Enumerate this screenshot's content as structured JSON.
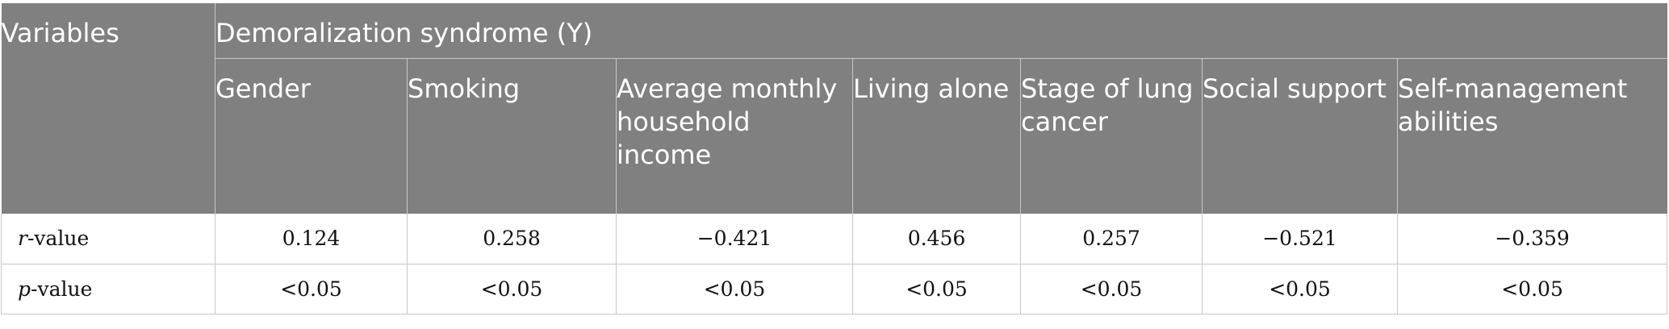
{
  "table": {
    "corner_label": "Variables",
    "group_label": "Demoralization syndrome (Y)",
    "columns": [
      "Gender",
      "Smoking",
      "Average monthly household income",
      "Living alone",
      "Stage of lung cancer",
      "Social support",
      "Self-management abilities"
    ],
    "rows": [
      {
        "label_var": "r",
        "label_suffix": "-value",
        "values": [
          "0.124",
          "0.258",
          "−0.421",
          "0.456",
          "0.257",
          "−0.521",
          "−0.359"
        ]
      },
      {
        "label_var": "p",
        "label_suffix": "-value",
        "values": [
          "<0.05",
          "<0.05",
          "<0.05",
          "<0.05",
          "<0.05",
          "<0.05",
          "<0.05"
        ]
      }
    ]
  }
}
